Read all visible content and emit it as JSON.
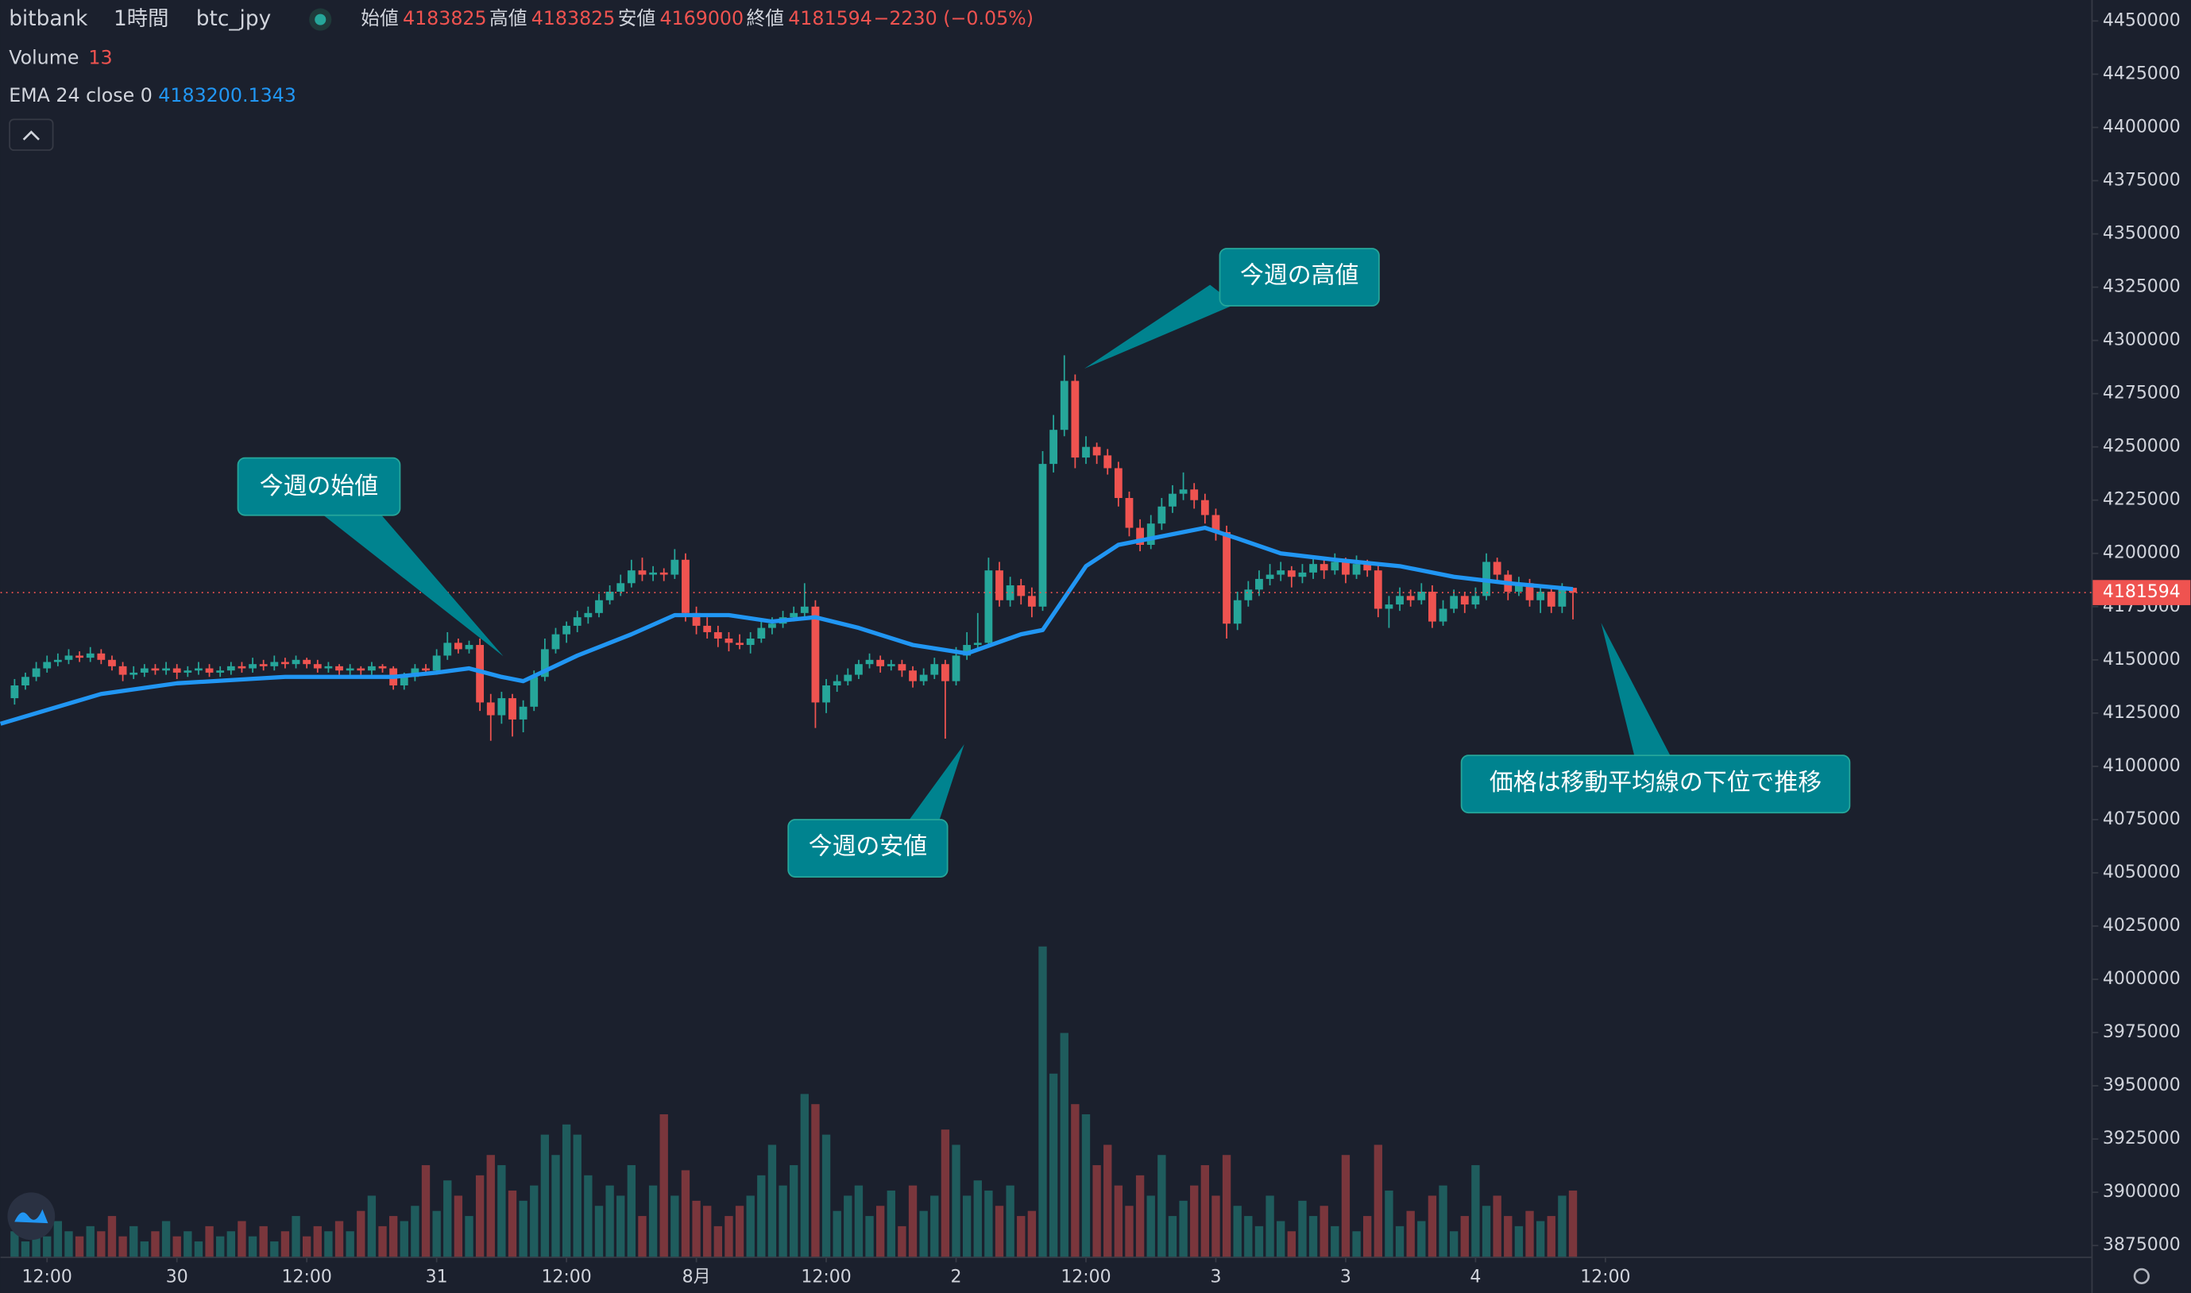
{
  "chart_data": {
    "type": "candlestick",
    "symbol": "bitbank",
    "interval": "1時間",
    "pair": "btc_jpy",
    "ohlc_labels": [
      "始値",
      "高値",
      "安値",
      "終値"
    ],
    "change": "−2230 (−0.05%)",
    "volume_label": "Volume",
    "ema_label": "EMA 24 close 0",
    "up_color": "#26a69a",
    "down_color": "#ef5350",
    "ema_color": "#2196f3",
    "xlim": [
      -1.3,
      191.9
    ],
    "xticks": [
      {
        "value": 3,
        "label": "12:00"
      },
      {
        "value": 15,
        "label": "30"
      },
      {
        "value": 27,
        "label": "12:00"
      },
      {
        "value": 39,
        "label": "31"
      },
      {
        "value": 51,
        "label": "12:00"
      },
      {
        "value": 63,
        "label": "8月"
      },
      {
        "value": 75,
        "label": "12:00"
      },
      {
        "value": 87,
        "label": "2"
      },
      {
        "value": 99,
        "label": "12:00"
      },
      {
        "value": 111,
        "label": "3"
      },
      {
        "value": 123,
        "label": "3"
      },
      {
        "value": 135,
        "label": "4"
      },
      {
        "value": 147,
        "label": "12:00"
      }
    ],
    "ylim": [
      3875000,
      4450000
    ],
    "yticks": [
      3875000,
      3900000,
      3925000,
      3950000,
      3975000,
      4000000,
      4025000,
      4050000,
      4075000,
      4100000,
      4125000,
      4150000,
      4175000,
      4200000,
      4225000,
      4250000,
      4275000,
      4300000,
      4325000,
      4350000,
      4375000,
      4400000,
      4425000,
      4450000
    ],
    "vlim": [
      0,
      243
    ],
    "candles": [
      [
        4132000,
        4141000,
        4129000,
        4138000
      ],
      [
        4138000,
        4144000,
        4136000,
        4142000
      ],
      [
        4142000,
        4149000,
        4140000,
        4146000
      ],
      [
        4146000,
        4152000,
        4144000,
        4149000
      ],
      [
        4149000,
        4153000,
        4147000,
        4150000
      ],
      [
        4150000,
        4155000,
        4148000,
        4152000
      ],
      [
        4152000,
        4154000,
        4149000,
        4151000
      ],
      [
        4151000,
        4156000,
        4149000,
        4153000
      ],
      [
        4153000,
        4155000,
        4148000,
        4150000
      ],
      [
        4150000,
        4152000,
        4145000,
        4147000
      ],
      [
        4147000,
        4149000,
        4140000,
        4143000
      ],
      [
        4143000,
        4147000,
        4141000,
        4144000
      ],
      [
        4144000,
        4148000,
        4142000,
        4146000
      ],
      [
        4146000,
        4148000,
        4143000,
        4145000
      ],
      [
        4145000,
        4149000,
        4143000,
        4146000
      ],
      [
        4146000,
        4148000,
        4141000,
        4144000
      ],
      [
        4144000,
        4147000,
        4142000,
        4145000
      ],
      [
        4145000,
        4149000,
        4143000,
        4146000
      ],
      [
        4146000,
        4148000,
        4142000,
        4144000
      ],
      [
        4144000,
        4147000,
        4142000,
        4145000
      ],
      [
        4145000,
        4149000,
        4143000,
        4147000
      ],
      [
        4147000,
        4149000,
        4144000,
        4146000
      ],
      [
        4146000,
        4151000,
        4144000,
        4148000
      ],
      [
        4148000,
        4150000,
        4145000,
        4147000
      ],
      [
        4147000,
        4152000,
        4145000,
        4149000
      ],
      [
        4149000,
        4151000,
        4146000,
        4148000
      ],
      [
        4148000,
        4152000,
        4146000,
        4150000
      ],
      [
        4150000,
        4151000,
        4146000,
        4148000
      ],
      [
        4148000,
        4150000,
        4144000,
        4146000
      ],
      [
        4146000,
        4149000,
        4144000,
        4147000
      ],
      [
        4147000,
        4148000,
        4143000,
        4145000
      ],
      [
        4145000,
        4148000,
        4143000,
        4146000
      ],
      [
        4146000,
        4147000,
        4143000,
        4145000
      ],
      [
        4145000,
        4149000,
        4143000,
        4147000
      ],
      [
        4147000,
        4148000,
        4144000,
        4146000
      ],
      [
        4146000,
        4147000,
        4136000,
        4138000
      ],
      [
        4138000,
        4144000,
        4136000,
        4142000
      ],
      [
        4142000,
        4148000,
        4140000,
        4146000
      ],
      [
        4146000,
        4148000,
        4143000,
        4145000
      ],
      [
        4145000,
        4155000,
        4143000,
        4152000
      ],
      [
        4152000,
        4163000,
        4150000,
        4158000
      ],
      [
        4158000,
        4160000,
        4153000,
        4155000
      ],
      [
        4155000,
        4159000,
        4153000,
        4157000
      ],
      [
        4157000,
        4160000,
        4126000,
        4130000
      ],
      [
        4130000,
        4134000,
        4112000,
        4124000
      ],
      [
        4124000,
        4135000,
        4120000,
        4132000
      ],
      [
        4132000,
        4134000,
        4114000,
        4122000
      ],
      [
        4122000,
        4131000,
        4116000,
        4128000
      ],
      [
        4128000,
        4145000,
        4126000,
        4142000
      ],
      [
        4142000,
        4160000,
        4140000,
        4155000
      ],
      [
        4155000,
        4165000,
        4153000,
        4162000
      ],
      [
        4162000,
        4168000,
        4158000,
        4166000
      ],
      [
        4166000,
        4173000,
        4163000,
        4170000
      ],
      [
        4170000,
        4175000,
        4167000,
        4172000
      ],
      [
        4172000,
        4181000,
        4170000,
        4178000
      ],
      [
        4178000,
        4185000,
        4176000,
        4182000
      ],
      [
        4182000,
        4190000,
        4180000,
        4186000
      ],
      [
        4186000,
        4197000,
        4184000,
        4192000
      ],
      [
        4192000,
        4198000,
        4187000,
        4190000
      ],
      [
        4190000,
        4194000,
        4187000,
        4191000
      ],
      [
        4191000,
        4193000,
        4187000,
        4190000
      ],
      [
        4190000,
        4202000,
        4188000,
        4197000
      ],
      [
        4197000,
        4200000,
        4168000,
        4172000
      ],
      [
        4172000,
        4175000,
        4162000,
        4166000
      ],
      [
        4166000,
        4170000,
        4160000,
        4163000
      ],
      [
        4163000,
        4166000,
        4156000,
        4160000
      ],
      [
        4160000,
        4163000,
        4154000,
        4158000
      ],
      [
        4158000,
        4162000,
        4155000,
        4157000
      ],
      [
        4157000,
        4163000,
        4153000,
        4160000
      ],
      [
        4160000,
        4168000,
        4158000,
        4165000
      ],
      [
        4165000,
        4170000,
        4162000,
        4167000
      ],
      [
        4167000,
        4173000,
        4165000,
        4170000
      ],
      [
        4170000,
        4175000,
        4168000,
        4172000
      ],
      [
        4172000,
        4186000,
        4170000,
        4175000
      ],
      [
        4175000,
        4178000,
        4118000,
        4130000
      ],
      [
        4130000,
        4141000,
        4125000,
        4138000
      ],
      [
        4138000,
        4143000,
        4135000,
        4140000
      ],
      [
        4140000,
        4146000,
        4138000,
        4143000
      ],
      [
        4143000,
        4150000,
        4141000,
        4148000
      ],
      [
        4148000,
        4153000,
        4146000,
        4150000
      ],
      [
        4150000,
        4152000,
        4144000,
        4147000
      ],
      [
        4147000,
        4150000,
        4145000,
        4148000
      ],
      [
        4148000,
        4150000,
        4142000,
        4145000
      ],
      [
        4145000,
        4147000,
        4137000,
        4140000
      ],
      [
        4140000,
        4146000,
        4138000,
        4143000
      ],
      [
        4143000,
        4151000,
        4141000,
        4148000
      ],
      [
        4148000,
        4150000,
        4113000,
        4140000
      ],
      [
        4140000,
        4156000,
        4138000,
        4152000
      ],
      [
        4152000,
        4163000,
        4150000,
        4157000
      ],
      [
        4157000,
        4172000,
        4155000,
        4158000
      ],
      [
        4158000,
        4198000,
        4156000,
        4192000
      ],
      [
        4192000,
        4196000,
        4175000,
        4178000
      ],
      [
        4178000,
        4189000,
        4175000,
        4185000
      ],
      [
        4185000,
        4188000,
        4176000,
        4180000
      ],
      [
        4180000,
        4184000,
        4170000,
        4175000
      ],
      [
        4175000,
        4248000,
        4173000,
        4242000
      ],
      [
        4242000,
        4265000,
        4238000,
        4258000
      ],
      [
        4258000,
        4293000,
        4255000,
        4281000
      ],
      [
        4281000,
        4284000,
        4240000,
        4245000
      ],
      [
        4245000,
        4255000,
        4242000,
        4250000
      ],
      [
        4250000,
        4252000,
        4242000,
        4246000
      ],
      [
        4246000,
        4249000,
        4237000,
        4240000
      ],
      [
        4240000,
        4243000,
        4222000,
        4226000
      ],
      [
        4226000,
        4229000,
        4208000,
        4212000
      ],
      [
        4212000,
        4216000,
        4201000,
        4204000
      ],
      [
        4204000,
        4218000,
        4202000,
        4214000
      ],
      [
        4214000,
        4226000,
        4211000,
        4222000
      ],
      [
        4222000,
        4232000,
        4219000,
        4228000
      ],
      [
        4228000,
        4238000,
        4225000,
        4230000
      ],
      [
        4230000,
        4233000,
        4221000,
        4225000
      ],
      [
        4225000,
        4228000,
        4214000,
        4218000
      ],
      [
        4218000,
        4221000,
        4206000,
        4210000
      ],
      [
        4210000,
        4213000,
        4160000,
        4167000
      ],
      [
        4167000,
        4182000,
        4164000,
        4178000
      ],
      [
        4178000,
        4187000,
        4175000,
        4183000
      ],
      [
        4183000,
        4192000,
        4180000,
        4188000
      ],
      [
        4188000,
        4195000,
        4185000,
        4190000
      ],
      [
        4190000,
        4196000,
        4187000,
        4192000
      ],
      [
        4192000,
        4194000,
        4184000,
        4189000
      ],
      [
        4189000,
        4195000,
        4186000,
        4191000
      ],
      [
        4191000,
        4199000,
        4188000,
        4195000
      ],
      [
        4195000,
        4197000,
        4188000,
        4192000
      ],
      [
        4192000,
        4200000,
        4190000,
        4196000
      ],
      [
        4196000,
        4198000,
        4186000,
        4190000
      ],
      [
        4190000,
        4199000,
        4188000,
        4195000
      ],
      [
        4195000,
        4197000,
        4189000,
        4192000
      ],
      [
        4192000,
        4195000,
        4170000,
        4174000
      ],
      [
        4174000,
        4180000,
        4165000,
        4176000
      ],
      [
        4176000,
        4184000,
        4173000,
        4180000
      ],
      [
        4180000,
        4183000,
        4175000,
        4178000
      ],
      [
        4178000,
        4186000,
        4176000,
        4182000
      ],
      [
        4182000,
        4185000,
        4165000,
        4168000
      ],
      [
        4168000,
        4178000,
        4166000,
        4174000
      ],
      [
        4174000,
        4183000,
        4172000,
        4180000
      ],
      [
        4180000,
        4182000,
        4172000,
        4176000
      ],
      [
        4176000,
        4184000,
        4174000,
        4180000
      ],
      [
        4180000,
        4200000,
        4178000,
        4196000
      ],
      [
        4196000,
        4198000,
        4187000,
        4190000
      ],
      [
        4190000,
        4192000,
        4178000,
        4182000
      ],
      [
        4182000,
        4189000,
        4180000,
        4186000
      ],
      [
        4186000,
        4188000,
        4175000,
        4178000
      ],
      [
        4178000,
        4185000,
        4172000,
        4182000
      ],
      [
        4182000,
        4184000,
        4172000,
        4175000
      ],
      [
        4175000,
        4186000,
        4172000,
        4183825
      ],
      [
        4183825,
        4183825,
        4169000,
        4181594
      ]
    ],
    "volume": [
      5,
      3,
      6,
      4,
      7,
      5,
      4,
      6,
      5,
      8,
      4,
      6,
      3,
      5,
      7,
      4,
      5,
      3,
      6,
      4,
      5,
      7,
      4,
      6,
      3,
      5,
      8,
      4,
      6,
      5,
      7,
      5,
      9,
      12,
      6,
      8,
      7,
      10,
      18,
      9,
      15,
      12,
      8,
      16,
      20,
      18,
      13,
      11,
      14,
      24,
      20,
      26,
      24,
      16,
      10,
      14,
      12,
      18,
      8,
      14,
      28,
      12,
      17,
      11,
      10,
      6,
      8,
      10,
      12,
      16,
      22,
      14,
      18,
      32,
      30,
      24,
      9,
      12,
      14,
      8,
      10,
      13,
      6,
      14,
      9,
      12,
      25,
      22,
      12,
      15,
      13,
      10,
      14,
      8,
      9,
      61,
      36,
      44,
      30,
      28,
      18,
      22,
      14,
      10,
      16,
      12,
      20,
      8,
      11,
      14,
      18,
      12,
      20,
      10,
      8,
      6,
      12,
      7,
      5,
      11,
      8,
      10,
      6,
      20,
      5,
      8,
      22,
      13,
      6,
      9,
      7,
      12,
      14,
      5,
      8,
      18,
      10,
      12,
      8,
      6,
      9,
      7,
      8,
      12,
      13
    ],
    "ema": {
      "x": [
        -1.3,
        8,
        15,
        25,
        35,
        39,
        42,
        45,
        47,
        52,
        57,
        61,
        66,
        70,
        74,
        78,
        83,
        88,
        93,
        95,
        99,
        102,
        105,
        110,
        113,
        117,
        122,
        128,
        133,
        138,
        144
      ],
      "values": [
        4120000,
        4134000,
        4139000,
        4142000,
        4142000,
        4144000,
        4146000,
        4142000,
        4140000,
        4152000,
        4162000,
        4171000,
        4171000,
        4168000,
        4170000,
        4165000,
        4157000,
        4153000,
        4162000,
        4164000,
        4194000,
        4204000,
        4207000,
        4212000,
        4207000,
        4200000,
        4197000,
        4194000,
        4189000,
        4186000,
        4183200.1343
      ]
    },
    "annotations": [
      "今週の始値",
      "今週の安値",
      "今週の高値",
      "価格は移動平均線の下位で推移"
    ]
  }
}
